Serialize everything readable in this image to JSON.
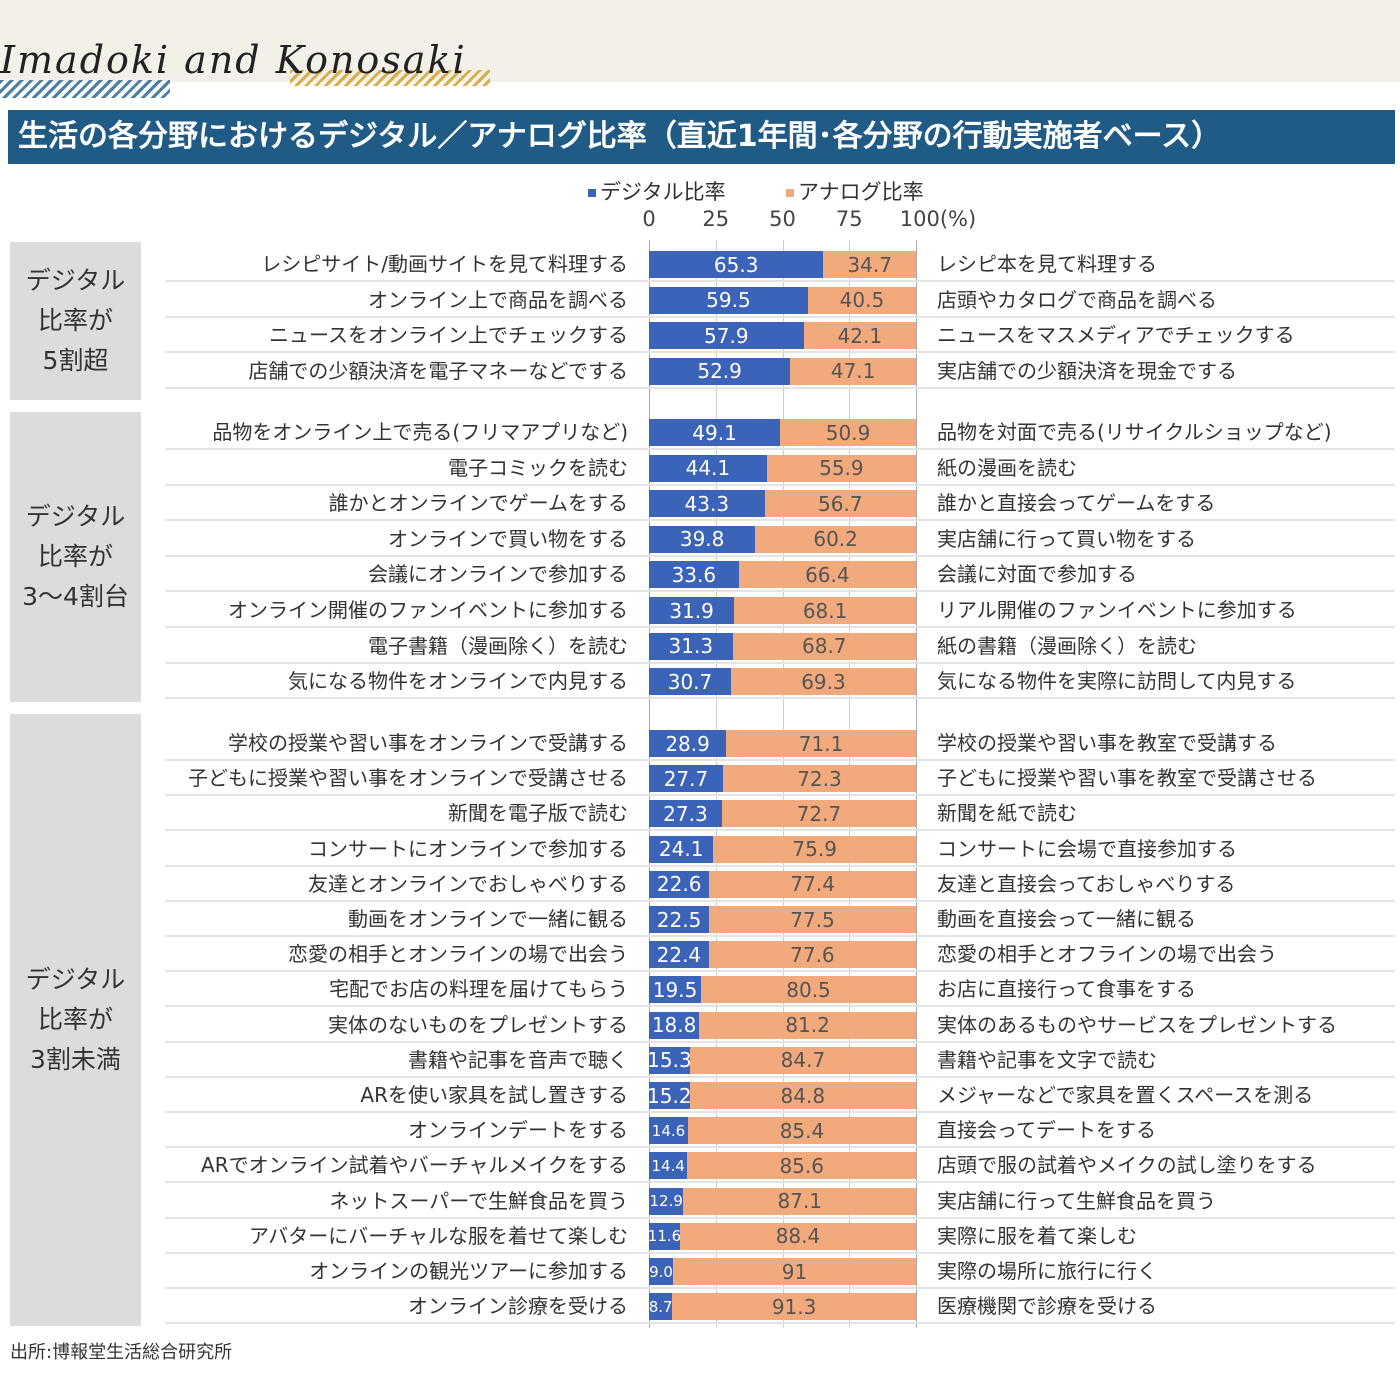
{
  "header": {
    "logo": "Imadoki and Konosaki",
    "title": "生活の各分野におけるデジタル／アナログ比率（直近1年間･各分野の行動実施者ベース）"
  },
  "footer": {
    "source": "出所:博報堂生活総合研究所"
  },
  "colors": {
    "digital": "#3b63b8",
    "analog": "#f2a97c",
    "title_bar": "#1f5b85",
    "group_box": "#dcdcdc"
  },
  "chart_data": {
    "type": "bar",
    "orientation": "horizontal-stacked-100",
    "title": "生活の各分野におけるデジタル／アナログ比率（直近1年間･各分野の行動実施者ベース）",
    "legend": [
      "デジタル比率",
      "アナログ比率"
    ],
    "legend_position": "top",
    "xticks": [
      "0",
      "25",
      "50",
      "75",
      "100(%)"
    ],
    "xlim": [
      0,
      100
    ],
    "groups": [
      {
        "label": "デジタル\n比率が\n5割超",
        "rows": [
          {
            "digital_activity": "レシピサイト/動画サイトを見て料理する",
            "digital": "65.3",
            "analog": "34.7",
            "analog_activity": "レシピ本を見て料理する"
          },
          {
            "digital_activity": "オンライン上で商品を調べる",
            "digital": "59.5",
            "analog": "40.5",
            "analog_activity": "店頭やカタログで商品を調べる"
          },
          {
            "digital_activity": "ニュースをオンライン上でチェックする",
            "digital": "57.9",
            "analog": "42.1",
            "analog_activity": "ニュースをマスメディアでチェックする"
          },
          {
            "digital_activity": "店舗での少額決済を電子マネーなどでする",
            "digital": "52.9",
            "analog": "47.1",
            "analog_activity": "実店舗での少額決済を現金でする"
          }
        ]
      },
      {
        "label": "デジタル\n比率が\n3～4割台",
        "rows": [
          {
            "digital_activity": "品物をオンライン上で売る(フリマアプリなど)",
            "digital": "49.1",
            "analog": "50.9",
            "analog_activity": "品物を対面で売る(リサイクルショップなど)"
          },
          {
            "digital_activity": "電子コミックを読む",
            "digital": "44.1",
            "analog": "55.9",
            "analog_activity": "紙の漫画を読む"
          },
          {
            "digital_activity": "誰かとオンラインでゲームをする",
            "digital": "43.3",
            "analog": "56.7",
            "analog_activity": "誰かと直接会ってゲームをする"
          },
          {
            "digital_activity": "オンラインで買い物をする",
            "digital": "39.8",
            "analog": "60.2",
            "analog_activity": "実店舗に行って買い物をする"
          },
          {
            "digital_activity": "会議にオンラインで参加する",
            "digital": "33.6",
            "analog": "66.4",
            "analog_activity": "会議に対面で参加する"
          },
          {
            "digital_activity": "オンライン開催のファンイベントに参加する",
            "digital": "31.9",
            "analog": "68.1",
            "analog_activity": "リアル開催のファンイベントに参加する"
          },
          {
            "digital_activity": "電子書籍（漫画除く）を読む",
            "digital": "31.3",
            "analog": "68.7",
            "analog_activity": "紙の書籍（漫画除く）を読む"
          },
          {
            "digital_activity": "気になる物件をオンラインで内見する",
            "digital": "30.7",
            "analog": "69.3",
            "analog_activity": "気になる物件を実際に訪問して内見する"
          }
        ]
      },
      {
        "label": "デジタル\n比率が\n3割未満",
        "rows": [
          {
            "digital_activity": "学校の授業や習い事をオンラインで受講する",
            "digital": "28.9",
            "analog": "71.1",
            "analog_activity": "学校の授業や習い事を教室で受講する"
          },
          {
            "digital_activity": "子どもに授業や習い事をオンラインで受講させる",
            "digital": "27.7",
            "analog": "72.3",
            "analog_activity": "子どもに授業や習い事を教室で受講させる"
          },
          {
            "digital_activity": "新聞を電子版で読む",
            "digital": "27.3",
            "analog": "72.7",
            "analog_activity": "新聞を紙で読む"
          },
          {
            "digital_activity": "コンサートにオンラインで参加する",
            "digital": "24.1",
            "analog": "75.9",
            "analog_activity": "コンサートに会場で直接参加する"
          },
          {
            "digital_activity": "友達とオンラインでおしゃべりする",
            "digital": "22.6",
            "analog": "77.4",
            "analog_activity": "友達と直接会っておしゃべりする"
          },
          {
            "digital_activity": "動画をオンラインで一緒に観る",
            "digital": "22.5",
            "analog": "77.5",
            "analog_activity": "動画を直接会って一緒に観る"
          },
          {
            "digital_activity": "恋愛の相手とオンラインの場で出会う",
            "digital": "22.4",
            "analog": "77.6",
            "analog_activity": "恋愛の相手とオフラインの場で出会う"
          },
          {
            "digital_activity": "宅配でお店の料理を届けてもらう",
            "digital": "19.5",
            "analog": "80.5",
            "analog_activity": "お店に直接行って食事をする"
          },
          {
            "digital_activity": "実体のないものをプレゼントする",
            "digital": "18.8",
            "analog": "81.2",
            "analog_activity": "実体のあるものやサービスをプレゼントする"
          },
          {
            "digital_activity": "書籍や記事を音声で聴く",
            "digital": "15.3",
            "analog": "84.7",
            "analog_activity": "書籍や記事を文字で読む"
          },
          {
            "digital_activity": "ARを使い家具を試し置きする",
            "digital": "15.2",
            "analog": "84.8",
            "analog_activity": "メジャーなどで家具を置くスペースを測る"
          },
          {
            "digital_activity": "オンラインデートをする",
            "digital": "14.6",
            "analog": "85.4",
            "analog_activity": "直接会ってデートをする"
          },
          {
            "digital_activity": "ARでオンライン試着やバーチャルメイクをする",
            "digital": "14.4",
            "analog": "85.6",
            "analog_activity": "店頭で服の試着やメイクの試し塗りをする"
          },
          {
            "digital_activity": "ネットスーパーで生鮮食品を買う",
            "digital": "12.9",
            "analog": "87.1",
            "analog_activity": "実店舗に行って生鮮食品を買う"
          },
          {
            "digital_activity": "アバターにバーチャルな服を着せて楽しむ",
            "digital": "11.6",
            "analog": "88.4",
            "analog_activity": "実際に服を着て楽しむ"
          },
          {
            "digital_activity": "オンラインの観光ツアーに参加する",
            "digital": "9.0",
            "analog": "91",
            "analog_activity": "実際の場所に旅行に行く"
          },
          {
            "digital_activity": "オンライン診療を受ける",
            "digital": "8.7",
            "analog": "91.3",
            "analog_activity": "医療機関で診療を受ける"
          }
        ]
      }
    ]
  }
}
